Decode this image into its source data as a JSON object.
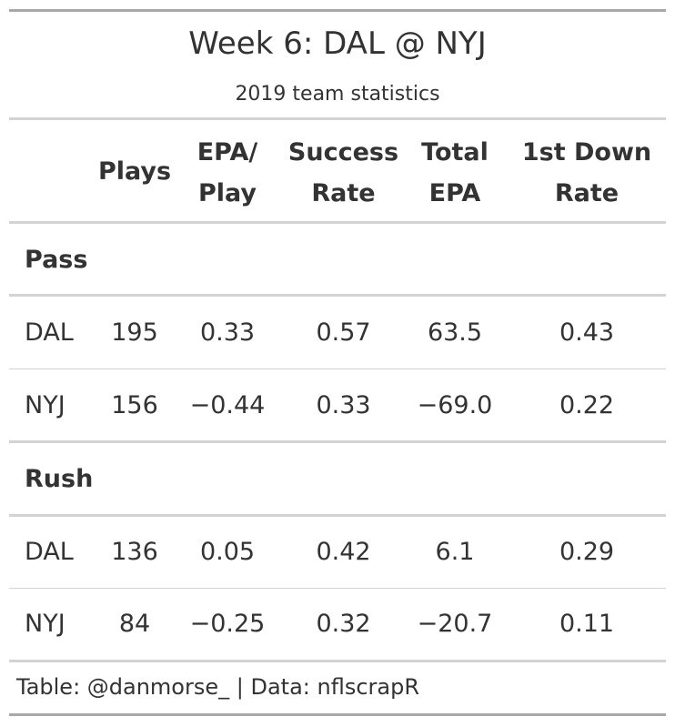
{
  "chart_data": {
    "type": "table",
    "title": "Week 6: DAL @ NYJ",
    "subtitle": "2019 team statistics",
    "columns": [
      {
        "key": "plays",
        "label_lines": [
          "Plays"
        ]
      },
      {
        "key": "epa_play",
        "label_lines": [
          "EPA/",
          "Play"
        ]
      },
      {
        "key": "success_rate",
        "label_lines": [
          "Success",
          "Rate"
        ]
      },
      {
        "key": "total_epa",
        "label_lines": [
          "Total",
          "EPA"
        ]
      },
      {
        "key": "first_down_rate",
        "label_lines": [
          "1st Down",
          "Rate"
        ]
      }
    ],
    "groups": [
      {
        "label": "Pass",
        "rows": [
          {
            "team": "DAL",
            "plays": "195",
            "epa_play": "0.33",
            "success_rate": "0.57",
            "total_epa": "63.5",
            "first_down_rate": "0.43"
          },
          {
            "team": "NYJ",
            "plays": "156",
            "epa_play": "−0.44",
            "success_rate": "0.33",
            "total_epa": "−69.0",
            "first_down_rate": "0.22"
          }
        ]
      },
      {
        "label": "Rush",
        "rows": [
          {
            "team": "DAL",
            "plays": "136",
            "epa_play": "0.05",
            "success_rate": "0.42",
            "total_epa": "6.1",
            "first_down_rate": "0.29"
          },
          {
            "team": "NYJ",
            "plays": "84",
            "epa_play": "−0.25",
            "success_rate": "0.32",
            "total_epa": "−20.7",
            "first_down_rate": "0.11"
          }
        ]
      }
    ],
    "source_note": "Table: @danmorse_ | Data: nflscrapR"
  }
}
